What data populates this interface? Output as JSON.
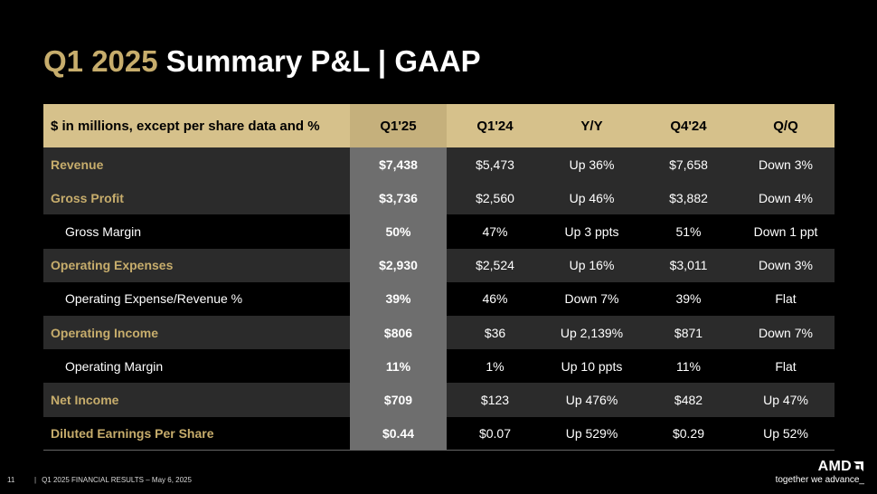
{
  "title": {
    "period": "Q1 2025",
    "main": "Summary P&L  |  GAAP"
  },
  "table": {
    "headers": [
      "$ in millions, except per share data and %",
      "Q1'25",
      "Q1'24",
      "Y/Y",
      "Q4'24",
      "Q/Q"
    ],
    "rows": [
      {
        "label": "Revenue",
        "q1_25": "$7,438",
        "q1_24": "$5,473",
        "yy": "Up 36%",
        "q4_24": "$7,658",
        "qq": "Down 3%"
      },
      {
        "label": "Gross Profit",
        "q1_25": "$3,736",
        "q1_24": "$2,560",
        "yy": "Up 46%",
        "q4_24": "$3,882",
        "qq": "Down 4%"
      },
      {
        "label": "Gross Margin",
        "q1_25": "50%",
        "q1_24": "47%",
        "yy": "Up 3 ppts",
        "q4_24": "51%",
        "qq": "Down 1 ppt"
      },
      {
        "label": "Operating Expenses",
        "q1_25": "$2,930",
        "q1_24": "$2,524",
        "yy": "Up 16%",
        "q4_24": "$3,011",
        "qq": "Down 3%"
      },
      {
        "label": "Operating Expense/Revenue %",
        "q1_25": "39%",
        "q1_24": "46%",
        "yy": "Down 7%",
        "q4_24": "39%",
        "qq": "Flat"
      },
      {
        "label": "Operating Income",
        "q1_25": "$806",
        "q1_24": "$36",
        "yy": "Up 2,139%",
        "q4_24": "$871",
        "qq": "Down 7%"
      },
      {
        "label": "Operating Margin",
        "q1_25": "11%",
        "q1_24": "1%",
        "yy": "Up 10 ppts",
        "q4_24": "11%",
        "qq": "Flat"
      },
      {
        "label": "Net Income",
        "q1_25": "$709",
        "q1_24": "$123",
        "yy": "Up 476%",
        "q4_24": "$482",
        "qq": "Up 47%"
      },
      {
        "label": "Diluted Earnings Per Share",
        "q1_25": "$0.44",
        "q1_24": "$0.07",
        "yy": "Up 529%",
        "q4_24": "$0.29",
        "qq": "Up 52%"
      }
    ]
  },
  "footer": {
    "page": "11",
    "separator": "|",
    "text": "Q1 2025 FINANCIAL RESULTS – May 6, 2025"
  },
  "logo": {
    "brand": "AMD",
    "tagline": "together we advance_"
  },
  "colors": {
    "gold": "#c7ad6c",
    "header_bg": "#d6c18b",
    "highlight_col": "#6e6e6e",
    "row_band": "#2b2b2b"
  }
}
